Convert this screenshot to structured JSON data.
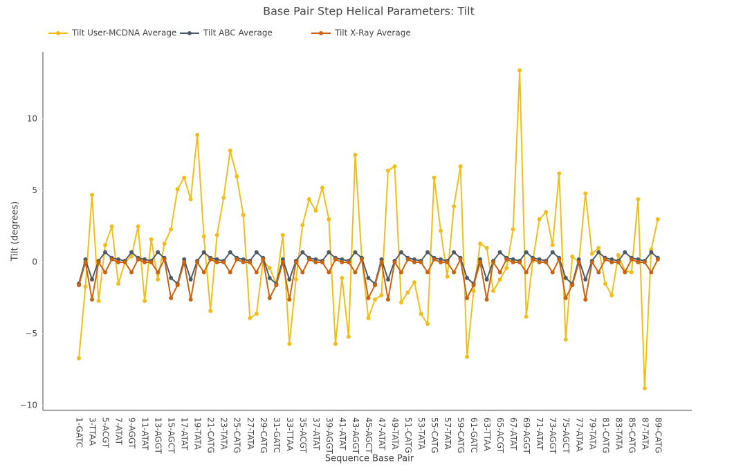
{
  "chart_data": {
    "type": "line",
    "title": "Base Pair Step Helical Parameters: Tilt",
    "x_label": "Sequence Base Pair",
    "y_label": "Tilt (degrees)",
    "categories": [
      "1-GATC",
      null,
      "3-TTAA",
      null,
      "5-ACGT",
      null,
      "7-ATAT",
      null,
      "9-AGGT",
      null,
      "11-ATAT",
      null,
      "13-AGGT",
      null,
      "15-AGCT",
      null,
      "17-ATAT",
      null,
      "19-TATA",
      null,
      "21-CATG",
      null,
      "23-TATA",
      null,
      "25-CATG",
      null,
      "27-TATA",
      null,
      "29-CATG",
      null,
      "31-GATC",
      null,
      "33-TTAA",
      null,
      "35-ACGT",
      null,
      "37-ATAT",
      null,
      "39-AGGT",
      null,
      "41-ATAT",
      null,
      "43-AGGT",
      null,
      "45-AGCT",
      null,
      "47-ATAT",
      null,
      "49-TATA",
      null,
      "51-CATG",
      null,
      "53-TATA",
      null,
      "55-CATG",
      null,
      "57-TATA",
      null,
      "59-CATG",
      null,
      "61-GATC",
      null,
      "63-TTAA",
      null,
      "65-ACGT",
      null,
      "67-ATAT",
      null,
      "69-AGGT",
      null,
      "71-ATAT",
      null,
      "73-AGGT",
      null,
      "75-AGCT",
      null,
      "77-ATAA",
      null,
      "79-TATA",
      null,
      "81-CATG",
      null,
      "83-TATA",
      null,
      "85-CATG",
      null,
      "87-TATA",
      null,
      "89-CATG"
    ],
    "series": [
      {
        "name": "Tilt User-MCDNA Average",
        "color": "#f0be1a",
        "values": [
          -6.7,
          -1.7,
          4.7,
          -2.7,
          1.2,
          2.5,
          -1.5,
          0,
          0.4,
          2.5,
          -2.7,
          1.6,
          -1.2,
          1.3,
          2.3,
          5.1,
          5.9,
          4.4,
          8.9,
          1.8,
          -3.4,
          1.9,
          4.5,
          7.8,
          6.0,
          3.3,
          -3.9,
          -3.6,
          0.1,
          -0.4,
          -1.5,
          1.9,
          -5.7,
          -1.2,
          2.6,
          4.4,
          3.6,
          5.2,
          3.0,
          -5.7,
          -1.1,
          -5.2,
          7.5,
          0.3,
          -3.9,
          -2.6,
          -2.3,
          6.4,
          6.7,
          -2.8,
          -2.1,
          -1.4,
          -3.6,
          -4.3,
          5.9,
          2.2,
          -1.0,
          3.9,
          6.7,
          -6.6,
          -2.0,
          1.3,
          1.0,
          -2.0,
          -1.2,
          -0.4,
          2.3,
          13.4,
          -3.8,
          0.1,
          3.0,
          3.5,
          1.2,
          6.2,
          -5.4,
          0.4,
          0,
          4.8,
          0.6,
          1.0,
          -1.5,
          -2.3,
          0.5,
          -0.6,
          -0.7,
          4.4,
          -8.8,
          0.9,
          3.0
        ]
      },
      {
        "name": "Tilt ABC Average",
        "color": "#4d5a66",
        "values": [
          -1.5,
          0.2,
          -1.2,
          0.1,
          0.7,
          0.3,
          0.2,
          0.1,
          0.7,
          0.3,
          0.2,
          0.1,
          0.7,
          0.3,
          -1.1,
          -1.5,
          0.2,
          -1.2,
          0.1,
          0.7,
          0.3,
          0.2,
          0.1,
          0.7,
          0.3,
          0.2,
          0.1,
          0.7,
          0.3,
          -1.1,
          -1.5,
          0.2,
          -1.2,
          0.1,
          0.7,
          0.3,
          0.2,
          0.1,
          0.7,
          0.3,
          0.2,
          0.1,
          0.7,
          0.3,
          -1.1,
          -1.5,
          0.2,
          -1.2,
          0.1,
          0.7,
          0.3,
          0.2,
          0.1,
          0.7,
          0.3,
          0.2,
          0.1,
          0.7,
          0.3,
          -1.1,
          -1.5,
          0.2,
          -1.2,
          0.1,
          0.7,
          0.3,
          0.2,
          0.1,
          0.7,
          0.3,
          0.2,
          0.1,
          0.7,
          0.3,
          -1.1,
          -1.5,
          0.2,
          -1.2,
          0.1,
          0.7,
          0.3,
          0.2,
          0.1,
          0.7,
          0.3,
          0.2,
          0.1,
          0.7,
          0.3
        ]
      },
      {
        "name": "Tilt X-Ray Average",
        "color": "#c8630f",
        "values": [
          -1.6,
          0,
          -2.6,
          0,
          -0.7,
          0.2,
          0,
          0,
          -0.7,
          0.2,
          0,
          0,
          -0.7,
          0.2,
          -2.5,
          -1.6,
          0,
          -2.6,
          0,
          -0.7,
          0.2,
          0,
          0,
          -0.7,
          0.2,
          0,
          0,
          -0.7,
          0.2,
          -2.5,
          -1.6,
          0,
          -2.6,
          0,
          -0.7,
          0.2,
          0,
          0,
          -0.7,
          0.2,
          0,
          0,
          -0.7,
          0.2,
          -2.5,
          -1.6,
          0,
          -2.6,
          0,
          -0.7,
          0.2,
          0,
          0,
          -0.7,
          0.2,
          0,
          0,
          -0.7,
          0.2,
          -2.5,
          -1.6,
          0,
          -2.6,
          0,
          -0.7,
          0.2,
          0,
          0,
          -0.7,
          0.2,
          0,
          0,
          -0.7,
          0.2,
          -2.5,
          -1.6,
          0,
          -2.6,
          0,
          -0.7,
          0.2,
          0,
          0,
          -0.7,
          0.2,
          0,
          0,
          -0.7,
          0.2
        ]
      }
    ],
    "ylim": [
      -10.34,
      14.69
    ],
    "yticks": [
      {
        "value": -10,
        "label": "−10"
      },
      {
        "value": -5,
        "label": "−5"
      },
      0,
      5,
      10
    ],
    "legend": "top-left",
    "grid": false
  }
}
